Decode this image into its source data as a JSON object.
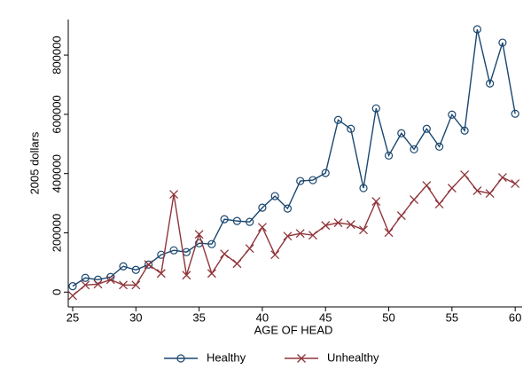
{
  "chart_data": {
    "type": "line",
    "x_label": "AGE OF HEAD",
    "y_label": "2005 dollars",
    "x": [
      25,
      26,
      27,
      28,
      29,
      30,
      31,
      32,
      33,
      34,
      35,
      36,
      37,
      38,
      39,
      40,
      41,
      42,
      43,
      44,
      45,
      46,
      47,
      48,
      49,
      50,
      51,
      52,
      53,
      54,
      55,
      56,
      57,
      58,
      59,
      60
    ],
    "series": [
      {
        "name": "Healthy",
        "color": "#1a476f",
        "marker": "circle",
        "values": [
          20000,
          48000,
          42000,
          51000,
          87000,
          75000,
          93000,
          126000,
          141000,
          135000,
          165000,
          162000,
          246000,
          240000,
          237000,
          285000,
          324000,
          282000,
          375000,
          378000,
          402000,
          581000,
          551000,
          351000,
          620000,
          461000,
          536000,
          482000,
          551000,
          491000,
          599000,
          545000,
          887000,
          704000,
          842000,
          602000
        ]
      },
      {
        "name": "Unhealthy",
        "color": "#90353b",
        "marker": "x",
        "values": [
          -12000,
          24000,
          27000,
          42000,
          24000,
          24000,
          93000,
          63000,
          330000,
          57000,
          195000,
          63000,
          129000,
          96000,
          147000,
          219000,
          126000,
          189000,
          198000,
          192000,
          225000,
          234000,
          228000,
          210000,
          306000,
          201000,
          258000,
          312000,
          360000,
          297000,
          351000,
          396000,
          342000,
          333000,
          387000,
          366000
        ]
      }
    ],
    "xlim": [
      24.65,
      60.55
    ],
    "xticks": [
      25,
      30,
      35,
      40,
      45,
      50,
      55,
      60
    ],
    "ylim": [
      -50000,
      920000
    ],
    "yticks": [
      0,
      200000,
      400000,
      600000,
      800000
    ],
    "legend": "bottom"
  }
}
